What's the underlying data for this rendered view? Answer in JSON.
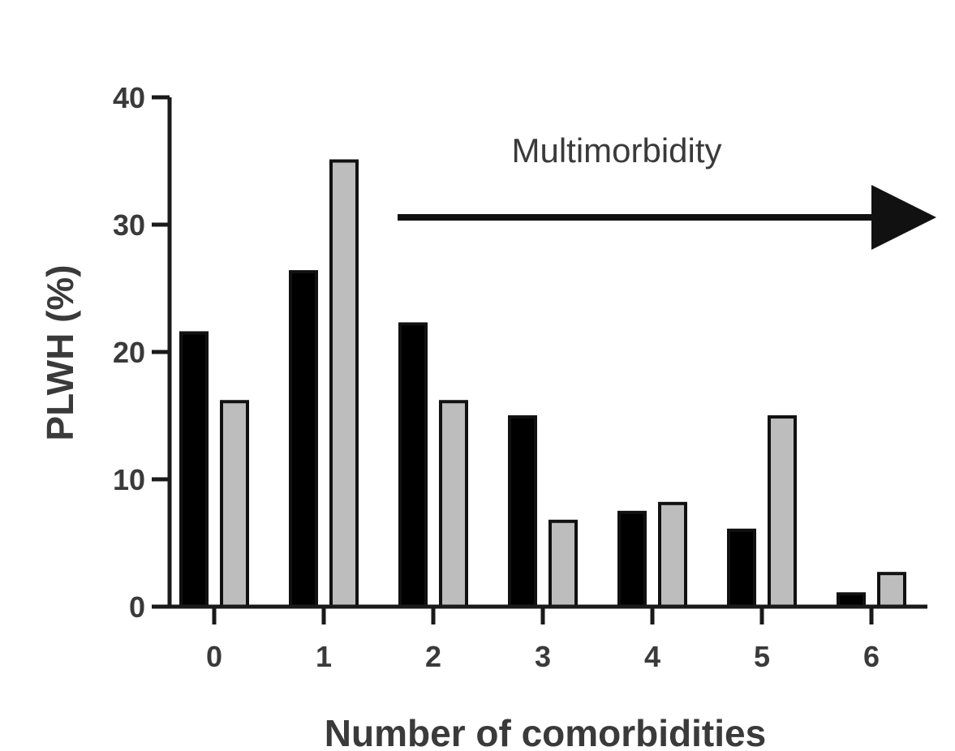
{
  "chart_data": {
    "type": "bar",
    "categories": [
      "0",
      "1",
      "2",
      "3",
      "4",
      "5",
      "6"
    ],
    "series": [
      {
        "values": [
          21.5,
          26.3,
          22.2,
          14.9,
          7.4,
          6.0,
          1.0
        ]
      },
      {
        "values": [
          16.1,
          35.0,
          16.1,
          6.7,
          8.1,
          14.9,
          2.6
        ]
      }
    ],
    "series_colors": [
      "#000000",
      "#bdbdbd"
    ],
    "ylabel": "PLWH (%)",
    "xlabel": "Number of comorbidities",
    "ylim": [
      0,
      40
    ],
    "yticks": [
      0,
      10,
      20,
      30,
      40
    ],
    "annotation": {
      "text": "Multimorbidity",
      "arrow": "right"
    },
    "grid": false,
    "legend": "none"
  }
}
